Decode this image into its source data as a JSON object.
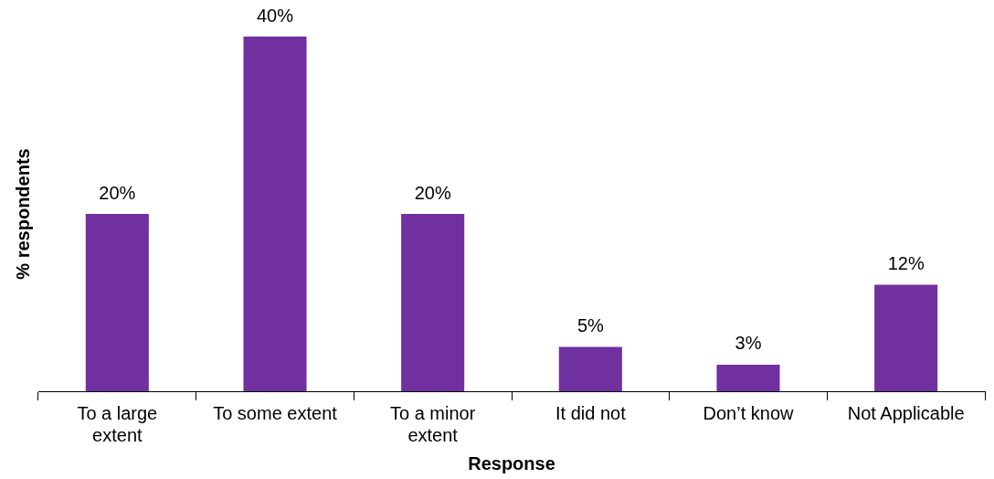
{
  "chart_data": {
    "type": "bar",
    "xlabel": "Response",
    "ylabel": "% respondents",
    "categories": [
      "To a large extent",
      "To some extent",
      "To a minor extent",
      "It did not",
      "Don’t know",
      "Not Applicable"
    ],
    "values": [
      20,
      40,
      20,
      5,
      3,
      12
    ],
    "value_labels": [
      "20%",
      "40%",
      "20%",
      "5%",
      "3%",
      "12%"
    ],
    "color": "#7030a0",
    "grid": false,
    "legend": false
  }
}
